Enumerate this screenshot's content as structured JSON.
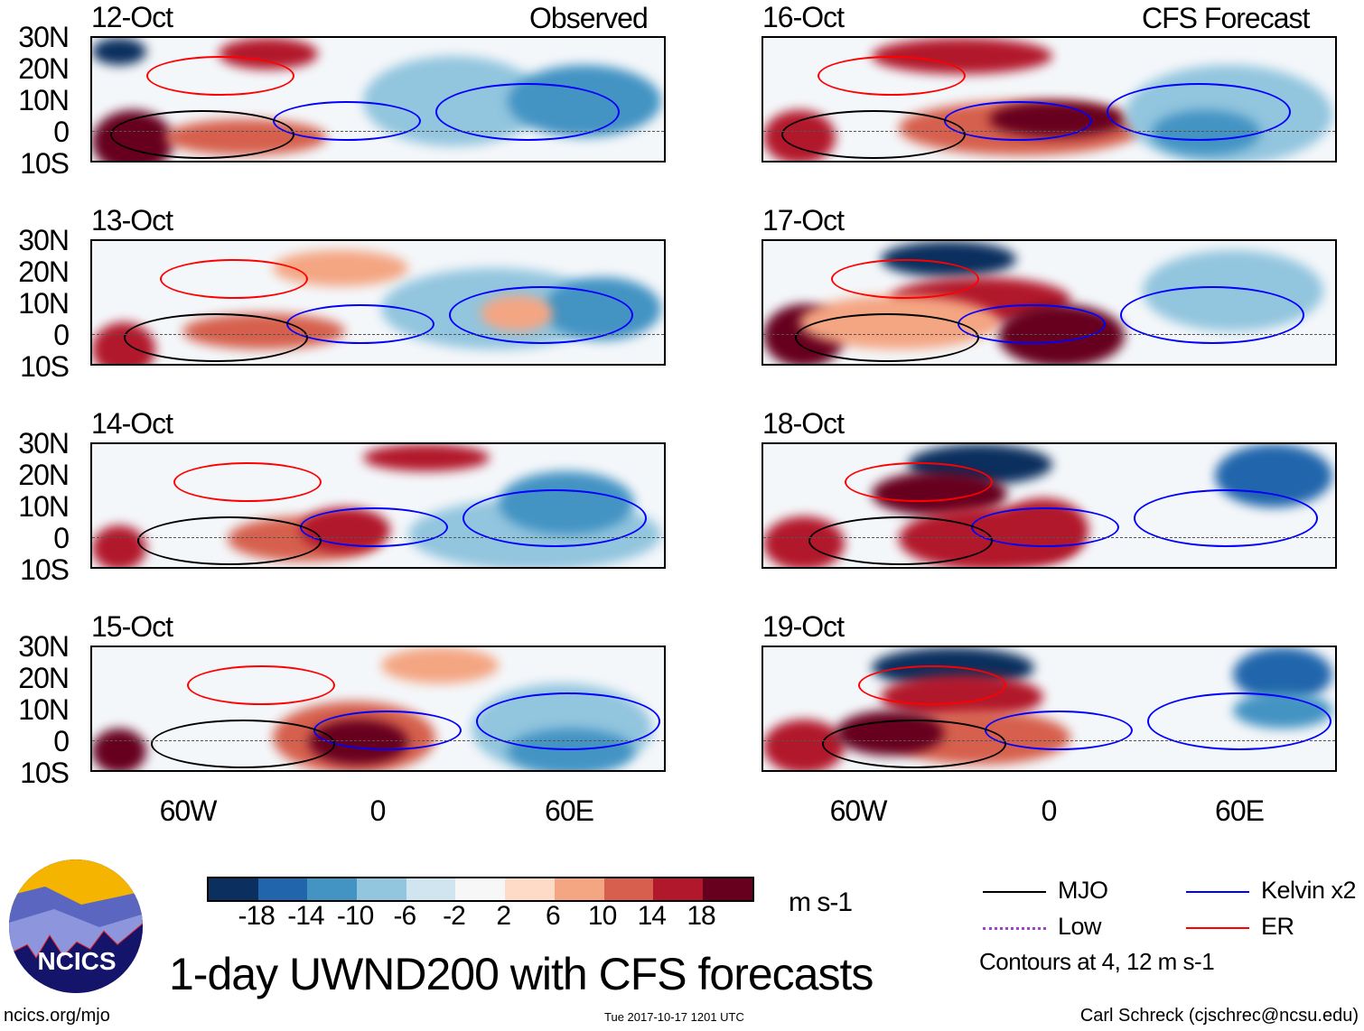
{
  "labels": {
    "observed": "Observed",
    "forecast": "CFS Forecast",
    "title": "1-day UWND200 with CFS forecasts",
    "units": "m s-1",
    "url": "ncics.org/mjo",
    "timestamp": "Tue 2017-10-17 1201 UTC",
    "author": "Carl Schreck (cjschrec@ncsu.edu)",
    "contours_note": "Contours at 4, 12 m s-1",
    "logo_text": "NCICS"
  },
  "lat_ticks": [
    "30N",
    "20N",
    "10N",
    "0",
    "10S"
  ],
  "lon_ticks": [
    "60W",
    "0",
    "60E"
  ],
  "panels_left": [
    "12-Oct",
    "13-Oct",
    "14-Oct",
    "15-Oct"
  ],
  "panels_right": [
    "16-Oct",
    "17-Oct",
    "18-Oct",
    "19-Oct"
  ],
  "colorbar": {
    "ticks": [
      "-18",
      "-14",
      "-10",
      "-6",
      "-2",
      "2",
      "6",
      "10",
      "14",
      "18"
    ],
    "colors": [
      "#0b2f5e",
      "#2166ac",
      "#4393c3",
      "#92c5de",
      "#d1e5f0",
      "#f7f7f7",
      "#fddbc7",
      "#f4a582",
      "#d6604d",
      "#b2182b",
      "#67001f"
    ]
  },
  "legend": [
    {
      "label": "MJO",
      "color": "#000000"
    },
    {
      "label": "Kelvin x2",
      "color": "#0000ff"
    },
    {
      "label": "Low",
      "color": "#a040d0"
    },
    {
      "label": "ER",
      "color": "#ff0000"
    }
  ]
}
